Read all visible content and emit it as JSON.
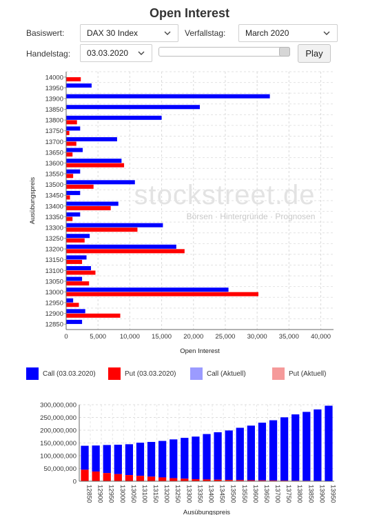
{
  "header": {
    "title": "Open Interest"
  },
  "controls": {
    "basiswert_label": "Basiswert:",
    "basiswert_value": "DAX 30 Index",
    "verfallstag_label": "Verfallstag:",
    "verfallstag_value": "March 2020",
    "handelstag_label": "Handelstag:",
    "handelstag_value": "03.03.2020",
    "play_label": "Play"
  },
  "watermark": {
    "brand": "stockstreet.de",
    "tagline": "Börsen · Hintergründe · Prognosen"
  },
  "colors": {
    "call": "#0000ff",
    "put": "#ff0000",
    "call_aktuell": "#9b9bff",
    "put_aktuell": "#f59a9a"
  },
  "legend": [
    {
      "label": "Call (03.03.2020)",
      "color": "#0000ff"
    },
    {
      "label": "Put (03.03.2020)",
      "color": "#ff0000"
    },
    {
      "label": "Call (Aktuell)",
      "color": "#9b9bff"
    },
    {
      "label": "Put (Aktuell)",
      "color": "#f59a9a"
    }
  ],
  "chart_data": [
    {
      "type": "bar",
      "orientation": "horizontal",
      "ylabel": "Ausübungspreis",
      "xlabel": "Open Interest",
      "xlim": [
        0,
        42000
      ],
      "x_ticks": [
        "0",
        "5,000",
        "10,000",
        "15,000",
        "20,000",
        "25,000",
        "30,000",
        "35,000",
        "40,000"
      ],
      "grid": true,
      "categories": [
        "14000",
        "13950",
        "13900",
        "13850",
        "13800",
        "13750",
        "13700",
        "13650",
        "13600",
        "13550",
        "13500",
        "13450",
        "13400",
        "13350",
        "13300",
        "13250",
        "13200",
        "13150",
        "13100",
        "13050",
        "13000",
        "12950",
        "12900",
        "12850"
      ],
      "series": [
        {
          "name": "Call (03.03.2020)",
          "values": [
            0,
            4000,
            32000,
            21000,
            15000,
            2200,
            8000,
            2600,
            8700,
            2200,
            10800,
            2200,
            8200,
            2200,
            15200,
            3700,
            17300,
            3200,
            3900,
            2500,
            25500,
            1100,
            3000,
            2500
          ]
        },
        {
          "name": "Put (03.03.2020)",
          "values": [
            2300,
            0,
            0,
            0,
            1700,
            500,
            1600,
            1000,
            9100,
            1100,
            4300,
            600,
            7000,
            1000,
            11200,
            2900,
            18600,
            2500,
            4600,
            3600,
            30200,
            2000,
            8500,
            0
          ]
        }
      ]
    },
    {
      "type": "bar",
      "stacked": true,
      "xlabel": "Ausübungspreis",
      "ylim": [
        0,
        300000000
      ],
      "y_ticks": [
        "0",
        "50,000,000",
        "100,000,000",
        "150,000,000",
        "200,000,000",
        "250,000,000",
        "300,000,000"
      ],
      "grid": true,
      "categories": [
        "12850",
        "12900",
        "12950",
        "13000",
        "13050",
        "13100",
        "13150",
        "13200",
        "13250",
        "13300",
        "13350",
        "13400",
        "13450",
        "13500",
        "13550",
        "13600",
        "13650",
        "13700",
        "13750",
        "13800",
        "13850",
        "13900",
        "13950"
      ],
      "series": [
        {
          "name": "Put",
          "values": [
            45000000,
            38000000,
            32000000,
            28000000,
            24000000,
            21000000,
            18000000,
            15000000,
            12000000,
            10000000,
            8000000,
            7000000,
            6000000,
            5000000,
            4500000,
            4000000,
            3500000,
            3000000,
            2500000,
            2000000,
            1800000,
            1500000,
            1000000
          ]
        },
        {
          "name": "Call",
          "values": [
            94000000,
            102000000,
            110000000,
            115000000,
            121000000,
            130000000,
            136000000,
            143000000,
            152000000,
            160000000,
            167000000,
            178000000,
            186000000,
            194000000,
            205000000,
            214000000,
            226000000,
            236000000,
            248000000,
            260000000,
            270000000,
            280000000,
            295000000
          ]
        }
      ]
    }
  ]
}
